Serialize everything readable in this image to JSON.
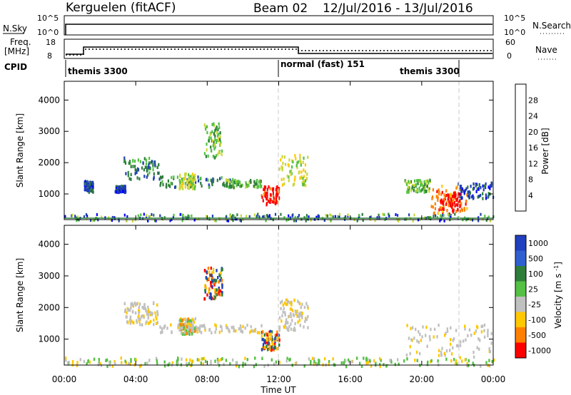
{
  "header": {
    "title": "Kerguelen (fitACF)",
    "beam": "Beam 02",
    "dates": "12/Jul/2016 - 13/Jul/2016"
  },
  "sky_panel": {
    "left_label": "N.Sky",
    "right_label": "N.Search",
    "left_ticks": [
      "10^5",
      "10^0"
    ],
    "right_ticks": [
      "10^5",
      "10^0"
    ]
  },
  "freq_panel": {
    "left_label_1": "Freq.",
    "left_label_2": "[MHz]",
    "right_label": "Nave",
    "left_ticks": [
      "18",
      "8"
    ],
    "right_ticks": [
      "60",
      "0"
    ]
  },
  "cpid": {
    "label": "CPID",
    "segments": [
      "themis 3300",
      "normal (fast) 151",
      "themis 3300"
    ]
  },
  "colors": {
    "axis": "#000000",
    "dash": "#c8c8c8",
    "ground_scatter": "#c0c0c0"
  },
  "x_axis": {
    "label": "Time UT",
    "ticks": [
      "00:00",
      "04:00",
      "08:00",
      "12:00",
      "16:00",
      "20:00",
      "00:00"
    ]
  },
  "chart_data": [
    {
      "type": "heatmap",
      "panel": "power",
      "ylabel": "Slant Range [km]",
      "ylim": [
        180,
        4600
      ],
      "yticks": [
        1000,
        2000,
        3000,
        4000
      ],
      "xlim_hours": [
        0,
        24
      ],
      "colorbar": {
        "label": "Power [dB]",
        "range": [
          0,
          32
        ],
        "ticks": [
          "4",
          "8",
          "12",
          "16",
          "20",
          "24",
          "28"
        ],
        "colors": [
          "#0000ff",
          "#1f3fb0",
          "#2e7d3a",
          "#54c044",
          "#c8d83a",
          "#ffc800",
          "#ff8000",
          "#ff0000"
        ]
      },
      "regions": [
        {
          "t": [
            1.1,
            1.6
          ],
          "r": [
            1100,
            1450
          ],
          "level": 1
        },
        {
          "t": [
            2.8,
            3.4
          ],
          "r": [
            1100,
            1300
          ],
          "level": 1
        },
        {
          "t": [
            3.3,
            5.3
          ],
          "r": [
            1500,
            2200
          ],
          "level": 2
        },
        {
          "t": [
            5.3,
            9.5
          ],
          "r": [
            1250,
            1600
          ],
          "level": 2
        },
        {
          "t": [
            6.4,
            7.3
          ],
          "r": [
            1200,
            1700
          ],
          "level": 4
        },
        {
          "t": [
            7.8,
            8.8
          ],
          "r": [
            2200,
            3300
          ],
          "level": 3
        },
        {
          "t": [
            9.0,
            11.0
          ],
          "r": [
            1250,
            1500
          ],
          "level": 3
        },
        {
          "t": [
            11.0,
            12.0
          ],
          "r": [
            700,
            1300
          ],
          "level": 7
        },
        {
          "t": [
            12.0,
            13.6
          ],
          "r": [
            1300,
            2300
          ],
          "level": 4
        },
        {
          "t": [
            19.0,
            20.5
          ],
          "r": [
            1100,
            1500
          ],
          "level": 3
        },
        {
          "t": [
            20.5,
            22.5
          ],
          "r": [
            400,
            1300
          ],
          "level": 6
        },
        {
          "t": [
            21.0,
            22.2
          ],
          "r": [
            500,
            1100
          ],
          "level": 7
        },
        {
          "t": [
            22.0,
            24.0
          ],
          "r": [
            900,
            1400
          ],
          "level": 1
        }
      ]
    },
    {
      "type": "heatmap",
      "panel": "velocity",
      "ylabel": "Slant Range [km]",
      "ylim": [
        180,
        4600
      ],
      "yticks": [
        1000,
        2000,
        3000,
        4000
      ],
      "xlim_hours": [
        0,
        24
      ],
      "colorbar": {
        "label": "Velocity [m s^-1]",
        "ticks": [
          "1000",
          "500",
          "100",
          "25",
          "-25",
          "-100",
          "-500",
          "-1000"
        ],
        "colors": [
          "#2040c0",
          "#3060d0",
          "#2e7d3a",
          "#54c044",
          "#c0c0c0",
          "#ffc800",
          "#ff8000",
          "#ff0000"
        ]
      },
      "regions": [
        {
          "t": [
            3.3,
            5.3
          ],
          "r": [
            1500,
            2200
          ],
          "class": "ground"
        },
        {
          "t": [
            5.3,
            11.0
          ],
          "r": [
            1250,
            1500
          ],
          "class": "ground"
        },
        {
          "t": [
            6.4,
            7.3
          ],
          "r": [
            1200,
            1700
          ],
          "class": "positive"
        },
        {
          "t": [
            7.8,
            8.8
          ],
          "r": [
            2300,
            3300
          ],
          "class": "negative"
        },
        {
          "t": [
            11.0,
            12.0
          ],
          "r": [
            700,
            1300
          ],
          "class": "negative"
        },
        {
          "t": [
            12.0,
            13.6
          ],
          "r": [
            1300,
            2300
          ],
          "class": "ground"
        },
        {
          "t": [
            19.0,
            24.0
          ],
          "r": [
            400,
            1500
          ],
          "class": "ground"
        },
        {
          "t": [
            0.0,
            24.0
          ],
          "r": [
            180,
            450
          ],
          "class": "low"
        }
      ]
    }
  ]
}
